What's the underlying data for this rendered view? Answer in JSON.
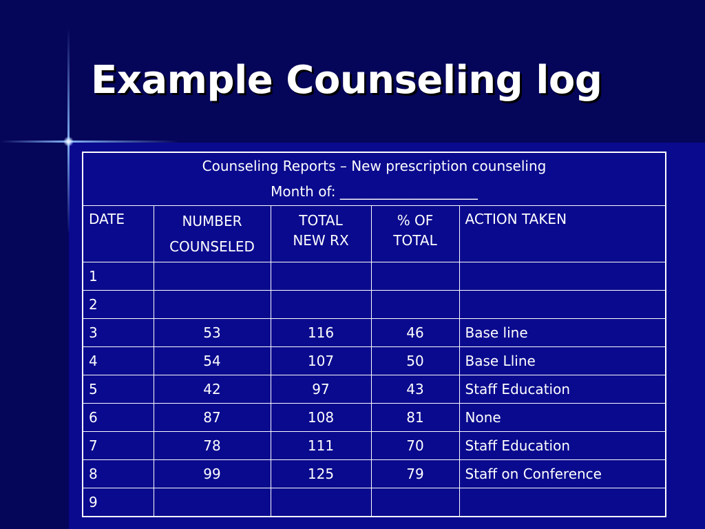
{
  "slide": {
    "title": "Example Counseling log"
  },
  "table": {
    "report_title": "Counseling Reports – New prescription counseling",
    "month_line": "Month of: ____________________",
    "columns": [
      {
        "line1": "DATE",
        "line2": ""
      },
      {
        "line1": "NUMBER",
        "line2": "COUNSELED"
      },
      {
        "line1": "TOTAL",
        "line2": "NEW RX"
      },
      {
        "line1": "% OF",
        "line2": "TOTAL"
      },
      {
        "line1": "ACTION TAKEN",
        "line2": ""
      }
    ],
    "rows": [
      {
        "date": "1",
        "counseled": "",
        "total_new_rx": "",
        "percent": "",
        "action": ""
      },
      {
        "date": "2",
        "counseled": "",
        "total_new_rx": "",
        "percent": "",
        "action": ""
      },
      {
        "date": "3",
        "counseled": "53",
        "total_new_rx": "116",
        "percent": "46",
        "action": "Base line"
      },
      {
        "date": "4",
        "counseled": "54",
        "total_new_rx": "107",
        "percent": "50",
        "action": "Base Lline"
      },
      {
        "date": "5",
        "counseled": "42",
        "total_new_rx": "97",
        "percent": "43",
        "action": "Staff Education"
      },
      {
        "date": "6",
        "counseled": "87",
        "total_new_rx": "108",
        "percent": "81",
        "action": "None"
      },
      {
        "date": "7",
        "counseled": "78",
        "total_new_rx": "111",
        "percent": "70",
        "action": "Staff Education"
      },
      {
        "date": "8",
        "counseled": "99",
        "total_new_rx": "125",
        "percent": "79",
        "action": "Staff on Conference"
      },
      {
        "date": "9",
        "counseled": "",
        "total_new_rx": "",
        "percent": "",
        "action": ""
      }
    ]
  },
  "colors": {
    "background": "#0a0a8e",
    "title_band": "#05055a",
    "text": "#ffffff",
    "accent_line": "#8cbeff"
  }
}
